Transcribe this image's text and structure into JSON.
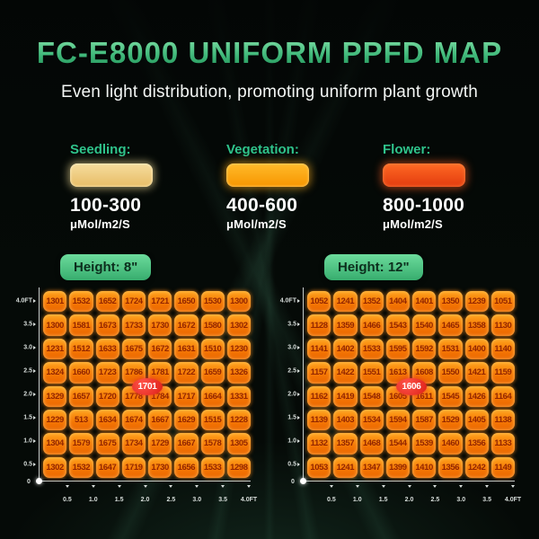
{
  "header": {
    "title": "FC-E8000 UNIFORM PPFD MAP",
    "subtitle": "Even light distribution, promoting uniform plant growth"
  },
  "legend": {
    "items": [
      {
        "label": "Seedling:",
        "range": "100-300",
        "unit": "μMol/m2/S",
        "color": "#ecc97f"
      },
      {
        "label": "Vegetation:",
        "range": "400-600",
        "unit": "μMol/m2/S",
        "color": "#ffa312"
      },
      {
        "label": "Flower:",
        "range": "800-1000",
        "unit": "μMol/m2/S",
        "color": "#f4511e"
      }
    ]
  },
  "chart_data": [
    {
      "type": "heatmap",
      "title": "Height: 8\"",
      "units": "μMol/m2/S",
      "x_ticks": [
        "0.5",
        "1.0",
        "1.5",
        "2.0",
        "2.5",
        "3.0",
        "3.5",
        "4.0FT"
      ],
      "y_ticks": [
        "4.0FT",
        "3.5",
        "3.0",
        "2.5",
        "2.0",
        "1.5",
        "1.0",
        "0.5"
      ],
      "origin": "0",
      "center_peak": "1701",
      "values": [
        [
          1301,
          1532,
          1652,
          1724,
          1721,
          1650,
          1530,
          1300
        ],
        [
          1300,
          1581,
          1673,
          1733,
          1730,
          1672,
          1580,
          1302
        ],
        [
          1231,
          1512,
          1633,
          1675,
          1672,
          1631,
          1510,
          1230
        ],
        [
          1324,
          1660,
          1723,
          1786,
          1781,
          1722,
          1659,
          1326
        ],
        [
          1329,
          1657,
          1720,
          1778,
          1784,
          1717,
          1664,
          1331
        ],
        [
          1229,
          513,
          1634,
          1674,
          1667,
          1629,
          1515,
          1228
        ],
        [
          1304,
          1579,
          1675,
          1734,
          1729,
          1667,
          1578,
          1305
        ],
        [
          1302,
          1532,
          1647,
          1719,
          1730,
          1656,
          1533,
          1298
        ]
      ]
    },
    {
      "type": "heatmap",
      "title": "Height: 12\"",
      "units": "μMol/m2/S",
      "x_ticks": [
        "0.5",
        "1.0",
        "1.5",
        "2.0",
        "2.5",
        "3.0",
        "3.5",
        "4.0FT"
      ],
      "y_ticks": [
        "4.0FT",
        "3.5",
        "3.0",
        "2.5",
        "2.0",
        "1.5",
        "1.0",
        "0.5"
      ],
      "origin": "0",
      "center_peak": "1606",
      "values": [
        [
          1052,
          1241,
          1352,
          1404,
          1401,
          1350,
          1239,
          1051
        ],
        [
          1128,
          1359,
          1466,
          1543,
          1540,
          1465,
          1358,
          1130
        ],
        [
          1141,
          1402,
          1533,
          1595,
          1592,
          1531,
          1400,
          1140
        ],
        [
          1157,
          1422,
          1551,
          1613,
          1608,
          1550,
          1421,
          1159
        ],
        [
          1162,
          1419,
          1548,
          1605,
          1611,
          1545,
          1426,
          1164
        ],
        [
          1139,
          1403,
          1534,
          1594,
          1587,
          1529,
          1405,
          1138
        ],
        [
          1132,
          1357,
          1468,
          1544,
          1539,
          1460,
          1356,
          1133
        ],
        [
          1053,
          1241,
          1347,
          1399,
          1410,
          1356,
          1242,
          1149
        ]
      ]
    }
  ]
}
